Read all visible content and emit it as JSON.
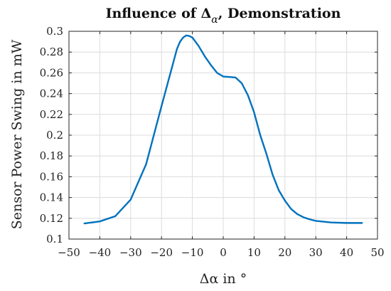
{
  "chart_data": {
    "type": "line",
    "title_main": "Influence of Δ",
    "title_sub": "α",
    "title_rest": ", Demonstration",
    "xlabel": "Δα in °",
    "ylabel": "Sensor Power Swing in mW",
    "xlim": [
      -50,
      50
    ],
    "ylim": [
      0.1,
      0.3
    ],
    "xticks": [
      -50,
      -40,
      -30,
      -20,
      -10,
      0,
      10,
      20,
      30,
      40,
      50
    ],
    "yticks": [
      0.1,
      0.12,
      0.14,
      0.16,
      0.18,
      0.2,
      0.22,
      0.24,
      0.26,
      0.28,
      0.3
    ],
    "xtick_labels": [
      "−50",
      "−40",
      "−30",
      "−20",
      "−10",
      "0",
      "10",
      "20",
      "30",
      "40",
      "50"
    ],
    "ytick_labels": [
      "0.1",
      "0.12",
      "0.14",
      "0.16",
      "0.18",
      "0.2",
      "0.22",
      "0.24",
      "0.26",
      "0.28",
      "0.3"
    ],
    "grid": true,
    "series": [
      {
        "color": "#0072bd",
        "x": [
          -45,
          -40,
          -35,
          -30,
          -25,
          -20,
          -15,
          -14,
          -13,
          -12,
          -11,
          -10,
          -8,
          -6,
          -4,
          -2,
          0,
          2,
          4,
          6,
          8,
          10,
          12,
          14,
          16,
          18,
          20,
          22,
          24,
          26,
          28,
          30,
          35,
          40,
          45
        ],
        "y": [
          0.115,
          0.117,
          0.122,
          0.138,
          0.172,
          0.228,
          0.283,
          0.29,
          0.294,
          0.296,
          0.2955,
          0.294,
          0.286,
          0.276,
          0.2675,
          0.26,
          0.2565,
          0.256,
          0.2555,
          0.25,
          0.2385,
          0.222,
          0.2,
          0.182,
          0.162,
          0.147,
          0.137,
          0.129,
          0.124,
          0.121,
          0.119,
          0.1175,
          0.116,
          0.1155,
          0.1155
        ]
      }
    ]
  }
}
